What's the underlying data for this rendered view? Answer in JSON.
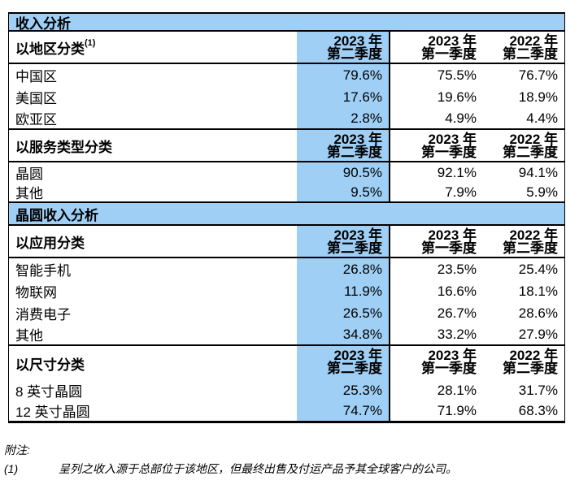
{
  "colors": {
    "highlight": "#9FCFF5"
  },
  "bars": {
    "revenue": "收入分析",
    "wafer": "晶圆收入分析"
  },
  "col_headers": [
    {
      "year": "2023 年",
      "quarter": "第二季度"
    },
    {
      "year": "2023 年",
      "quarter": "第一季度"
    },
    {
      "year": "2022 年",
      "quarter": "第二季度"
    }
  ],
  "sections": [
    {
      "label": "以地区分类",
      "sup": "(1)",
      "rows": [
        {
          "label": "中国区",
          "v": [
            "79.6%",
            "75.5%",
            "76.7%"
          ]
        },
        {
          "label": "美国区",
          "v": [
            "17.6%",
            "19.6%",
            "18.9%"
          ]
        },
        {
          "label": "欧亚区",
          "v": [
            "2.8%",
            "4.9%",
            "4.4%"
          ]
        }
      ]
    },
    {
      "label": "以服务类型分类",
      "rows": [
        {
          "label": "晶圆",
          "v": [
            "90.5%",
            "92.1%",
            "94.1%"
          ]
        },
        {
          "label": "其他",
          "v": [
            "9.5%",
            "7.9%",
            "5.9%"
          ]
        }
      ]
    },
    {
      "label": "以应用分类",
      "rows": [
        {
          "label": "智能手机",
          "v": [
            "26.8%",
            "23.5%",
            "25.4%"
          ]
        },
        {
          "label": "物联网",
          "v": [
            "11.9%",
            "16.6%",
            "18.1%"
          ]
        },
        {
          "label": "消费电子",
          "v": [
            "26.5%",
            "26.7%",
            "28.6%"
          ]
        },
        {
          "label": "其他",
          "v": [
            "34.8%",
            "33.2%",
            "27.9%"
          ]
        }
      ]
    },
    {
      "label": "以尺寸分类",
      "rows": [
        {
          "label": "8 英寸晶圆",
          "v": [
            "25.3%",
            "28.1%",
            "31.7%"
          ]
        },
        {
          "label": "12 英寸晶圆",
          "v": [
            "74.7%",
            "71.9%",
            "68.3%"
          ]
        }
      ]
    }
  ],
  "footnotes": {
    "heading": "附注:",
    "items": [
      {
        "num": "(1)",
        "text": "呈列之收入源于总部位于该地区，但最终出售及付运产品予其全球客户的公司。"
      }
    ]
  }
}
